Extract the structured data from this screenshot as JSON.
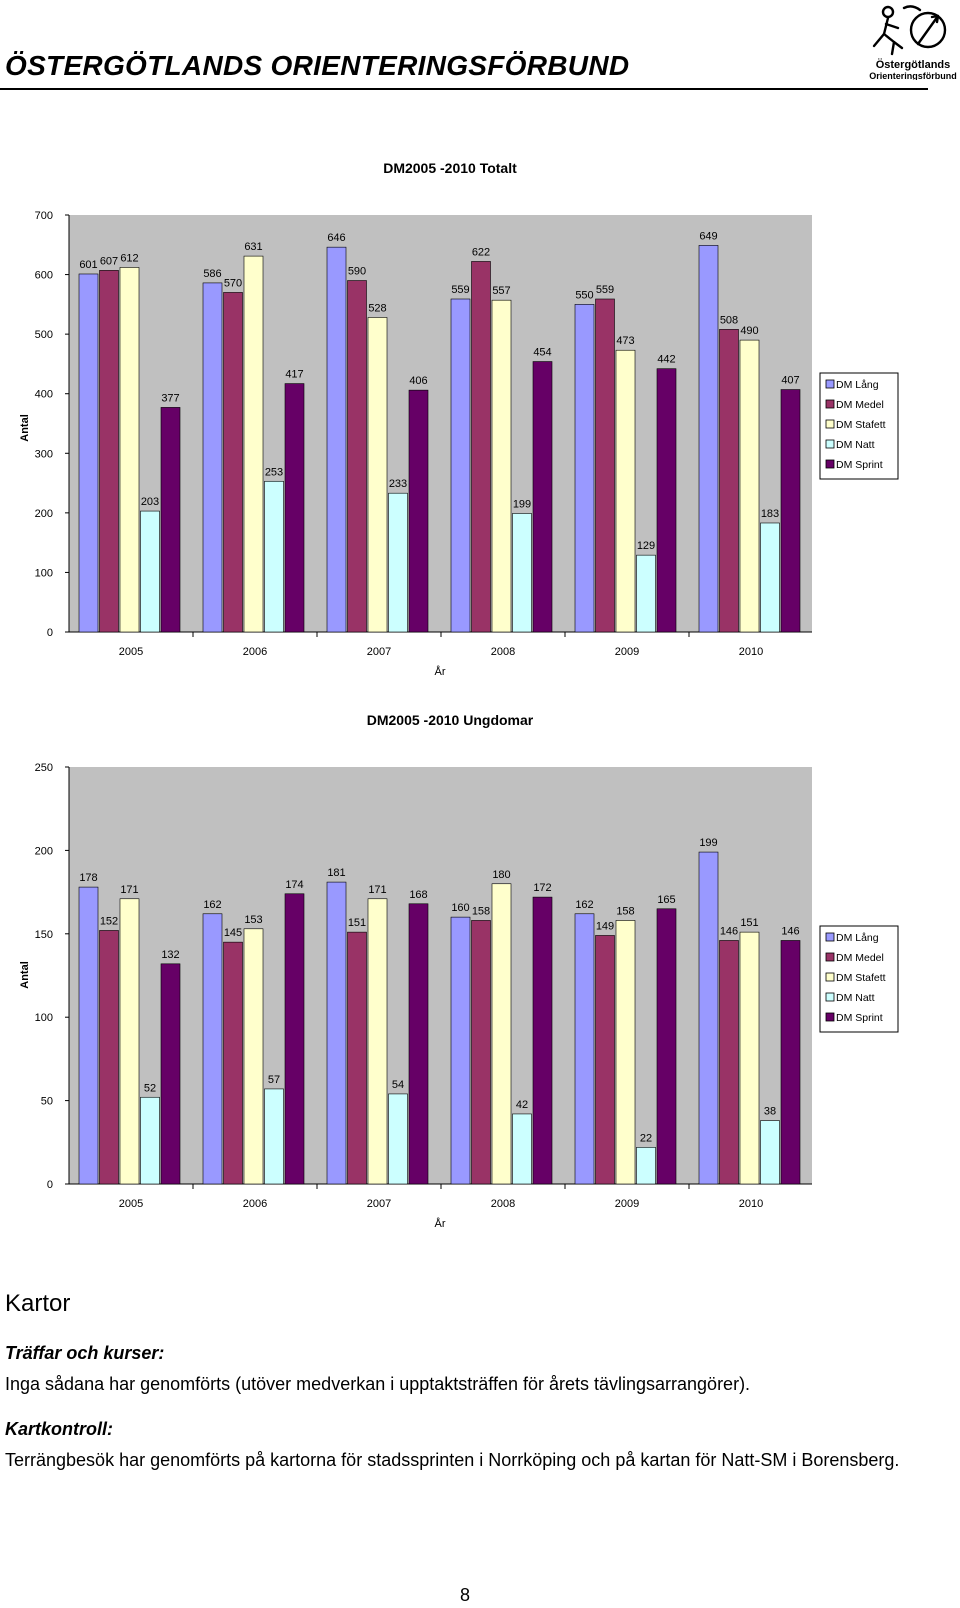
{
  "header": {
    "title": "ÖSTERGÖTLANDS ORIENTERINGSFÖRBUND",
    "logo_text": "Östergötlands",
    "logo_subtext": "Orienteringsförbund"
  },
  "charts": [
    {
      "title": "DM2005 -2010 Totalt",
      "xlabel": "År",
      "ylabel": "Antal",
      "ylim": [
        0,
        700
      ],
      "yticks": [
        "0",
        "100",
        "200",
        "300",
        "400",
        "500",
        "600",
        "700"
      ],
      "categories": [
        "2005",
        "2006",
        "2007",
        "2008",
        "2009",
        "2010"
      ],
      "series": [
        {
          "name": "DM Lång",
          "values": [
            601,
            586,
            646,
            559,
            550,
            649
          ]
        },
        {
          "name": "DM Medel",
          "values": [
            607,
            570,
            590,
            622,
            559,
            508
          ]
        },
        {
          "name": "DM Stafett",
          "values": [
            612,
            631,
            528,
            557,
            473,
            490
          ]
        },
        {
          "name": "DM Natt",
          "values": [
            203,
            253,
            233,
            199,
            129,
            183
          ]
        },
        {
          "name": "DM Sprint",
          "values": [
            377,
            417,
            406,
            454,
            442,
            407
          ]
        }
      ]
    },
    {
      "title": "DM2005 -2010 Ungdomar",
      "xlabel": "År",
      "ylabel": "Antal",
      "ylim": [
        0,
        250
      ],
      "yticks": [
        "0",
        "50",
        "100",
        "150",
        "200",
        "250"
      ],
      "categories": [
        "2005",
        "2006",
        "2007",
        "2008",
        "2009",
        "2010"
      ],
      "series": [
        {
          "name": "DM Lång",
          "values": [
            178,
            162,
            181,
            160,
            162,
            199
          ]
        },
        {
          "name": "DM Medel",
          "values": [
            152,
            145,
            151,
            158,
            149,
            146
          ]
        },
        {
          "name": "DM Stafett",
          "values": [
            171,
            153,
            171,
            180,
            158,
            151
          ]
        },
        {
          "name": "DM Natt",
          "values": [
            52,
            57,
            54,
            42,
            22,
            38
          ]
        },
        {
          "name": "DM Sprint",
          "values": [
            132,
            174,
            168,
            172,
            165,
            146
          ]
        }
      ]
    }
  ],
  "chart_style": {
    "series_colors": [
      "#9999ff",
      "#993366",
      "#ffffcc",
      "#ccffff",
      "#660066"
    ],
    "plot_background": "#c0c0c0"
  },
  "chart_data": [
    {
      "type": "bar",
      "title": "DM2005 -2010 Totalt",
      "xlabel": "År",
      "ylabel": "Antal",
      "ylim": [
        0,
        700
      ],
      "categories": [
        "2005",
        "2006",
        "2007",
        "2008",
        "2009",
        "2010"
      ],
      "series": [
        {
          "name": "DM Lång",
          "values": [
            601,
            586,
            646,
            559,
            550,
            649
          ]
        },
        {
          "name": "DM Medel",
          "values": [
            607,
            570,
            590,
            622,
            559,
            508
          ]
        },
        {
          "name": "DM Stafett",
          "values": [
            612,
            631,
            528,
            557,
            473,
            490
          ]
        },
        {
          "name": "DM Natt",
          "values": [
            203,
            253,
            233,
            199,
            129,
            183
          ]
        },
        {
          "name": "DM Sprint",
          "values": [
            377,
            417,
            406,
            454,
            442,
            407
          ]
        }
      ],
      "legend": "right",
      "grid": false
    },
    {
      "type": "bar",
      "title": "DM2005 -2010 Ungdomar",
      "xlabel": "År",
      "ylabel": "Antal",
      "ylim": [
        0,
        250
      ],
      "categories": [
        "2005",
        "2006",
        "2007",
        "2008",
        "2009",
        "2010"
      ],
      "series": [
        {
          "name": "DM Lång",
          "values": [
            178,
            162,
            181,
            160,
            162,
            199
          ]
        },
        {
          "name": "DM Medel",
          "values": [
            152,
            145,
            151,
            158,
            149,
            146
          ]
        },
        {
          "name": "DM Stafett",
          "values": [
            171,
            153,
            171,
            180,
            158,
            151
          ]
        },
        {
          "name": "DM Natt",
          "values": [
            52,
            57,
            54,
            42,
            22,
            38
          ]
        },
        {
          "name": "DM Sprint",
          "values": [
            132,
            174,
            168,
            172,
            165,
            146
          ]
        }
      ],
      "legend": "right",
      "grid": false
    }
  ],
  "body": {
    "heading": "Kartor",
    "sections": [
      {
        "subheading": "Träffar och kurser:",
        "text": "Inga sådana har genomförts (utöver medverkan i upptaktsträffen för årets tävlingsarrangörer)."
      },
      {
        "subheading": "Kartkontroll:",
        "text": "Terrängbesök har genomförts på kartorna för stadssprinten i Norrköping och på kartan för Natt-SM i Borensberg."
      }
    ]
  },
  "page_number": "8"
}
